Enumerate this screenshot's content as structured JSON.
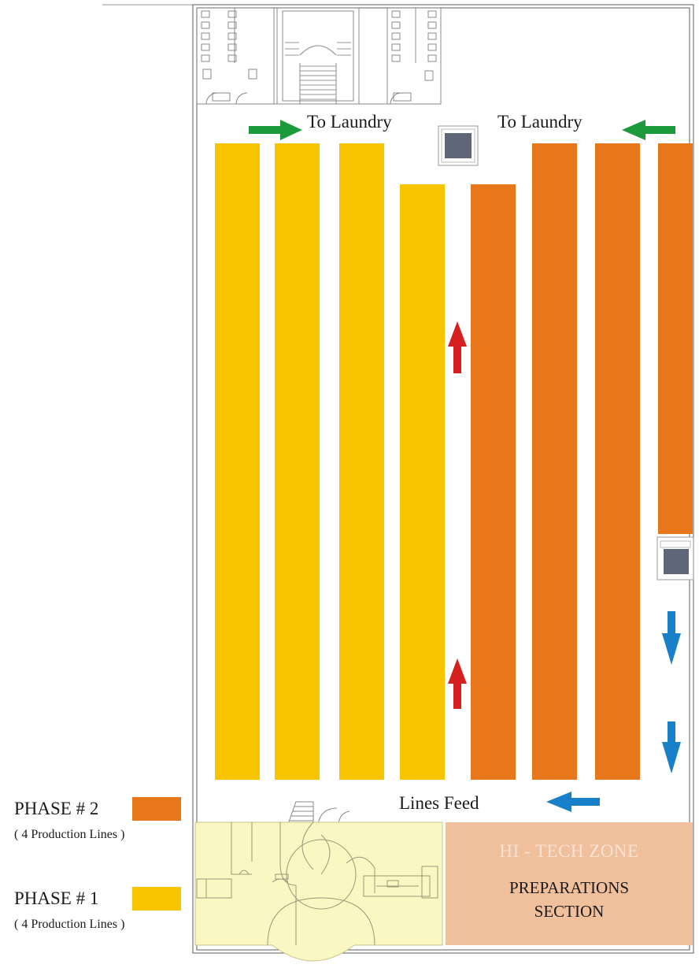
{
  "labels": {
    "to_laundry_left": "To Laundry",
    "to_laundry_right": "To Laundry",
    "lines_feed": "Lines Feed",
    "hi_tech_zone": "HI - TECH  ZONE",
    "preparations_line1": "PREPARATIONS",
    "preparations_line2": "SECTION"
  },
  "legend": [
    {
      "title": "PHASE # 2",
      "subtitle": "( 4 Production Lines )",
      "color": "#e8761a"
    },
    {
      "title": "PHASE # 1",
      "subtitle": "( 4 Production Lines )",
      "color": "#f8c400"
    }
  ],
  "colors": {
    "phase1": "#f8c400",
    "phase2": "#e8761a",
    "hi_tech_zone": "#f0bf9c",
    "support_area": "#fbf7c2",
    "arrow_green": "#1a9a3a",
    "arrow_red": "#d62020",
    "arrow_blue": "#1780c8",
    "machine": "#5e6677"
  },
  "flow_arrows": [
    {
      "color": "green",
      "direction": "right"
    },
    {
      "color": "green",
      "direction": "left"
    },
    {
      "color": "red",
      "direction": "up"
    },
    {
      "color": "red",
      "direction": "up"
    },
    {
      "color": "blue",
      "direction": "down"
    },
    {
      "color": "blue",
      "direction": "down"
    },
    {
      "color": "blue",
      "direction": "left"
    }
  ]
}
